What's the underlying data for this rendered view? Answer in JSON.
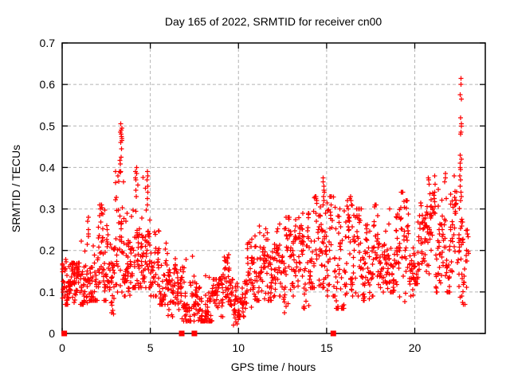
{
  "chart_data": {
    "type": "scatter",
    "title": "Day 165 of 2022, SRMTID for receiver cn00",
    "xlabel": "GPS time / hours",
    "ylabel": "SRMTID / TECUs",
    "xlim": [
      0,
      24
    ],
    "ylim": [
      0,
      0.7
    ],
    "xticks": [
      0,
      5,
      10,
      15,
      20
    ],
    "yticks": [
      0,
      0.1,
      0.2,
      0.3,
      0.4,
      0.5,
      0.6,
      0.7
    ],
    "grid": "dashed-major",
    "legend": "none",
    "marker": {
      "symbol": "plus",
      "color": "#ff0000"
    },
    "grid_color": "#b4b4b4",
    "border_color": "#000000",
    "bands_columns": [
      "x0",
      "x1",
      "n",
      "ymin",
      "ymax",
      "ymode"
    ],
    "bands": [
      [
        0.0,
        0.5,
        50,
        0.07,
        0.18,
        0.12
      ],
      [
        0.5,
        1.0,
        50,
        0.05,
        0.17,
        0.11
      ],
      [
        1.0,
        1.5,
        46,
        0.07,
        0.24,
        0.13
      ],
      [
        1.5,
        2.0,
        46,
        0.08,
        0.28,
        0.15
      ],
      [
        2.0,
        2.5,
        46,
        0.08,
        0.31,
        0.17
      ],
      [
        2.5,
        3.0,
        44,
        0.04,
        0.26,
        0.13
      ],
      [
        3.0,
        3.5,
        44,
        0.1,
        0.44,
        0.19
      ],
      [
        3.5,
        4.0,
        44,
        0.09,
        0.3,
        0.17
      ],
      [
        4.0,
        4.5,
        44,
        0.11,
        0.4,
        0.19
      ],
      [
        4.5,
        5.0,
        44,
        0.11,
        0.39,
        0.18
      ],
      [
        5.0,
        5.5,
        40,
        0.09,
        0.25,
        0.16
      ],
      [
        5.5,
        6.0,
        40,
        0.07,
        0.24,
        0.14
      ],
      [
        6.0,
        6.5,
        38,
        0.04,
        0.18,
        0.11
      ],
      [
        6.5,
        7.0,
        38,
        0.03,
        0.16,
        0.09
      ],
      [
        7.0,
        7.5,
        38,
        0.03,
        0.19,
        0.09
      ],
      [
        7.5,
        8.0,
        38,
        0.03,
        0.14,
        0.08
      ],
      [
        8.0,
        8.5,
        38,
        0.03,
        0.17,
        0.09
      ],
      [
        8.5,
        9.0,
        38,
        0.03,
        0.13,
        0.08
      ],
      [
        9.0,
        9.5,
        38,
        0.04,
        0.19,
        0.1
      ],
      [
        9.5,
        10.0,
        38,
        0.02,
        0.13,
        0.08
      ],
      [
        10.0,
        10.5,
        38,
        0.04,
        0.15,
        0.09
      ],
      [
        10.5,
        11.0,
        40,
        0.06,
        0.26,
        0.13
      ],
      [
        11.0,
        11.5,
        40,
        0.08,
        0.26,
        0.14
      ],
      [
        11.5,
        12.0,
        40,
        0.08,
        0.28,
        0.15
      ],
      [
        12.0,
        12.5,
        40,
        0.09,
        0.28,
        0.16
      ],
      [
        12.5,
        13.0,
        40,
        0.05,
        0.28,
        0.15
      ],
      [
        13.0,
        13.5,
        40,
        0.09,
        0.3,
        0.17
      ],
      [
        13.5,
        14.0,
        40,
        0.06,
        0.29,
        0.16
      ],
      [
        14.0,
        14.5,
        40,
        0.11,
        0.33,
        0.18
      ],
      [
        14.5,
        15.0,
        40,
        0.11,
        0.37,
        0.19
      ],
      [
        15.0,
        15.5,
        40,
        0.09,
        0.33,
        0.18
      ],
      [
        15.5,
        16.0,
        40,
        0.06,
        0.3,
        0.16
      ],
      [
        16.0,
        16.5,
        40,
        0.09,
        0.33,
        0.17
      ],
      [
        16.5,
        17.0,
        40,
        0.05,
        0.3,
        0.15
      ],
      [
        17.0,
        17.5,
        40,
        0.08,
        0.28,
        0.16
      ],
      [
        17.5,
        18.0,
        40,
        0.09,
        0.31,
        0.18
      ],
      [
        18.0,
        18.5,
        40,
        0.1,
        0.31,
        0.19
      ],
      [
        18.5,
        19.0,
        40,
        0.1,
        0.31,
        0.18
      ],
      [
        19.0,
        19.5,
        40,
        0.06,
        0.34,
        0.19
      ],
      [
        19.5,
        20.0,
        40,
        0.09,
        0.32,
        0.19
      ],
      [
        20.0,
        20.5,
        40,
        0.12,
        0.33,
        0.2
      ],
      [
        20.5,
        21.0,
        40,
        0.12,
        0.37,
        0.21
      ],
      [
        21.0,
        21.5,
        38,
        0.1,
        0.38,
        0.2
      ],
      [
        21.5,
        22.0,
        38,
        0.1,
        0.38,
        0.21
      ],
      [
        22.0,
        22.4,
        32,
        0.12,
        0.38,
        0.25
      ],
      [
        22.4,
        22.75,
        26,
        0.07,
        0.34,
        0.2
      ],
      [
        22.75,
        23.05,
        20,
        0.07,
        0.3,
        0.17
      ]
    ],
    "spike_columns": [
      {
        "x": 0.05,
        "ys": [
          0.165,
          0.16,
          0.155
        ]
      },
      {
        "x": 1.45,
        "ys": [
          0.28,
          0.27,
          0.25,
          0.24
        ]
      },
      {
        "x": 2.2,
        "ys": [
          0.31,
          0.3,
          0.29
        ]
      },
      {
        "x": 3.35,
        "ys": [
          0.505,
          0.495,
          0.49,
          0.485,
          0.48,
          0.475,
          0.47,
          0.465,
          0.46,
          0.445,
          0.425
        ]
      },
      {
        "x": 4.2,
        "ys": [
          0.4,
          0.39,
          0.385,
          0.375,
          0.37,
          0.345,
          0.33
        ]
      },
      {
        "x": 4.85,
        "ys": [
          0.39,
          0.38,
          0.37,
          0.355,
          0.34,
          0.325,
          0.31
        ]
      },
      {
        "x": 9.4,
        "ys": [
          0.19,
          0.18,
          0.17
        ]
      },
      {
        "x": 14.85,
        "ys": [
          0.375,
          0.365,
          0.355,
          0.345,
          0.34,
          0.33,
          0.32,
          0.31
        ]
      },
      {
        "x": 16.4,
        "ys": [
          0.33,
          0.32,
          0.31
        ]
      },
      {
        "x": 20.8,
        "ys": [
          0.375,
          0.37,
          0.36
        ]
      },
      {
        "x": 21.7,
        "ys": [
          0.385,
          0.375,
          0.365
        ]
      },
      {
        "x": 22.6,
        "ys": [
          0.615,
          0.6,
          0.575,
          0.565,
          0.52,
          0.505,
          0.5,
          0.485,
          0.48,
          0.43,
          0.42,
          0.41,
          0.4,
          0.395,
          0.38,
          0.37,
          0.355,
          0.34,
          0.33,
          0.32
        ]
      },
      {
        "x": 22.7,
        "ys": [
          0.09,
          0.075
        ]
      }
    ],
    "zero_markers_x": [
      0.12,
      6.78,
      7.5,
      15.38
    ]
  }
}
